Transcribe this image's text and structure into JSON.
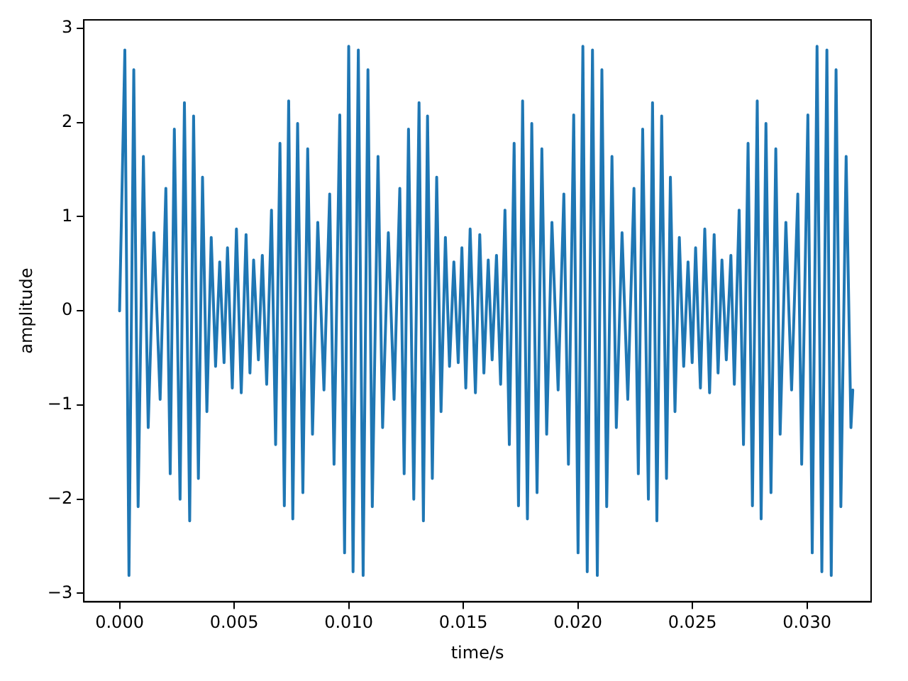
{
  "chart_data": {
    "type": "line",
    "xlabel": "time/s",
    "ylabel": "amplitude",
    "color": "#1f77b4",
    "grid": false,
    "legend": false,
    "marker": "none",
    "line_style": "solid",
    "xlim": [
      -0.00156,
      0.0328
    ],
    "xticks": [
      {
        "value": 0,
        "label": "0.000"
      },
      {
        "value": 0.005,
        "label": "0.005"
      },
      {
        "value": 0.01,
        "label": "0.010"
      },
      {
        "value": 0.015,
        "label": "0.015"
      },
      {
        "value": 0.02,
        "label": "0.020"
      },
      {
        "value": 0.025,
        "label": "0.025"
      },
      {
        "value": 0.03,
        "label": "0.030"
      }
    ],
    "ylim": [
      -3.09,
      3.09
    ],
    "yticks": [
      {
        "value": -3,
        "label": "−3"
      },
      {
        "value": -2,
        "label": "−2"
      },
      {
        "value": -1,
        "label": "−1"
      },
      0,
      1,
      2,
      3
    ],
    "x": [
      0,
      0.00023,
      0.00041,
      0.00062,
      0.00081,
      0.00104,
      0.00125,
      0.0015,
      0.00177,
      0.00202,
      0.00221,
      0.00239,
      0.00264,
      0.00283,
      0.00306,
      0.00323,
      0.00344,
      0.00362,
      0.00381,
      0.004,
      0.00419,
      0.00437,
      0.00456,
      0.00471,
      0.00492,
      0.0051,
      0.00531,
      0.00552,
      0.00569,
      0.00585,
      0.00606,
      0.00623,
      0.00642,
      0.00663,
      0.00681,
      0.007,
      0.00719,
      0.00738,
      0.00756,
      0.00777,
      0.008,
      0.00821,
      0.00842,
      0.00865,
      0.00892,
      0.00917,
      0.00936,
      0.00961,
      0.00982,
      0.01,
      0.01019,
      0.01042,
      0.01063,
      0.01084,
      0.01103,
      0.01128,
      0.01148,
      0.01173,
      0.01198,
      0.01223,
      0.01242,
      0.01261,
      0.01284,
      0.01307,
      0.01326,
      0.01344,
      0.01365,
      0.01384,
      0.01403,
      0.01422,
      0.0144,
      0.01459,
      0.01478,
      0.01494,
      0.01511,
      0.0153,
      0.01553,
      0.01572,
      0.0159,
      0.01609,
      0.01626,
      0.01645,
      0.01663,
      0.01682,
      0.01701,
      0.01722,
      0.01741,
      0.01759,
      0.0178,
      0.01799,
      0.01822,
      0.01843,
      0.01864,
      0.01887,
      0.01914,
      0.01939,
      0.01959,
      0.01982,
      0.02001,
      0.02022,
      0.02041,
      0.02064,
      0.02085,
      0.02105,
      0.02126,
      0.02149,
      0.02168,
      0.02193,
      0.02218,
      0.02245,
      0.02264,
      0.02283,
      0.02308,
      0.02326,
      0.02345,
      0.02366,
      0.02387,
      0.02404,
      0.02424,
      0.02443,
      0.02462,
      0.02481,
      0.02499,
      0.02514,
      0.02535,
      0.02554,
      0.02575,
      0.02595,
      0.02612,
      0.02629,
      0.02648,
      0.02668,
      0.02683,
      0.02704,
      0.02723,
      0.02743,
      0.02762,
      0.02783,
      0.028,
      0.02821,
      0.02843,
      0.02864,
      0.02883,
      0.02908,
      0.02933,
      0.0296,
      0.02977,
      0.03004,
      0.03023,
      0.03044,
      0.03065,
      0.03087,
      0.03106,
      0.03127,
      0.03148,
      0.03171,
      0.03192,
      0.032
    ],
    "values": [
      0,
      2.77,
      -2.81,
      2.56,
      -2.08,
      1.64,
      -1.24,
      0.83,
      -0.94,
      1.3,
      -1.73,
      1.93,
      -2.0,
      2.21,
      -2.23,
      2.07,
      -1.78,
      1.42,
      -1.07,
      0.78,
      -0.59,
      0.52,
      -0.55,
      0.67,
      -0.82,
      0.87,
      -0.87,
      0.81,
      -0.66,
      0.54,
      -0.52,
      0.59,
      -0.78,
      1.07,
      -1.42,
      1.78,
      -2.07,
      2.23,
      -2.21,
      1.99,
      -1.93,
      1.72,
      -1.31,
      0.94,
      -0.84,
      1.24,
      -1.63,
      2.08,
      -2.57,
      2.81,
      -2.77,
      2.77,
      -2.81,
      2.56,
      -2.08,
      1.64,
      -1.24,
      0.83,
      -0.94,
      1.3,
      -1.73,
      1.93,
      -2.0,
      2.21,
      -2.23,
      2.07,
      -1.78,
      1.42,
      -1.07,
      0.78,
      -0.59,
      0.52,
      -0.55,
      0.67,
      -0.82,
      0.87,
      -0.87,
      0.81,
      -0.66,
      0.54,
      -0.52,
      0.59,
      -0.78,
      1.07,
      -1.42,
      1.78,
      -2.07,
      2.23,
      -2.21,
      1.99,
      -1.93,
      1.72,
      -1.31,
      0.94,
      -0.84,
      1.24,
      -1.63,
      2.08,
      -2.57,
      2.81,
      -2.77,
      2.77,
      -2.81,
      2.56,
      -2.08,
      1.64,
      -1.24,
      0.83,
      -0.94,
      1.3,
      -1.73,
      1.93,
      -2.0,
      2.21,
      -2.23,
      2.07,
      -1.78,
      1.42,
      -1.07,
      0.78,
      -0.59,
      0.52,
      -0.55,
      0.67,
      -0.82,
      0.87,
      -0.87,
      0.81,
      -0.66,
      0.54,
      -0.52,
      0.59,
      -0.78,
      1.07,
      -1.42,
      1.78,
      -2.07,
      2.23,
      -2.21,
      1.99,
      -1.93,
      1.72,
      -1.31,
      0.94,
      -0.84,
      1.24,
      -1.63,
      2.08,
      -2.57,
      2.81,
      -2.77,
      2.77,
      -2.81,
      2.56,
      -2.08,
      1.64,
      -1.24,
      -0.84
    ]
  }
}
